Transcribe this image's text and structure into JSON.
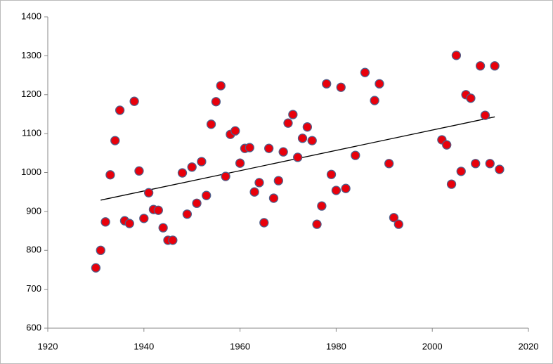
{
  "chart_data": {
    "type": "scatter",
    "x": [
      1930,
      1931,
      1932,
      1933,
      1934,
      1935,
      1936,
      1937,
      1938,
      1939,
      1940,
      1941,
      1942,
      1943,
      1944,
      1945,
      1946,
      1948,
      1949,
      1950,
      1951,
      1952,
      1953,
      1954,
      1955,
      1956,
      1957,
      1958,
      1959,
      1960,
      1961,
      1962,
      1963,
      1964,
      1965,
      1966,
      1967,
      1968,
      1969,
      1970,
      1971,
      1972,
      1973,
      1974,
      1975,
      1976,
      1977,
      1978,
      1979,
      1980,
      1981,
      1982,
      1984,
      1986,
      1988,
      1989,
      1991,
      1992,
      1993,
      2002,
      2003,
      2004,
      2005,
      2006,
      2007,
      2008,
      2009,
      2010,
      2011,
      2012,
      2013,
      2014
    ],
    "values": [
      755,
      800,
      873,
      994,
      1082,
      1160,
      876,
      869,
      1183,
      1004,
      882,
      948,
      905,
      903,
      858,
      826,
      826,
      999,
      893,
      1014,
      921,
      1028,
      941,
      1124,
      1182,
      1223,
      990,
      1098,
      1107,
      1024,
      1062,
      1064,
      950,
      974,
      871,
      1062,
      934,
      979,
      1053,
      1127,
      1149,
      1039,
      1088,
      1117,
      1082,
      867,
      914,
      1228,
      995,
      954,
      1219,
      959,
      1044,
      1257,
      1185,
      1228,
      1023,
      884,
      867,
      1084,
      1071,
      970,
      1301,
      1003,
      1200,
      1191,
      1023,
      1274,
      1147,
      1023,
      1274,
      1008
    ],
    "color": "#e8000b",
    "trendline": {
      "x": [
        1931,
        2013
      ],
      "y": [
        929,
        1143
      ],
      "color": "#000000"
    },
    "xlim": [
      1920,
      2020
    ],
    "xticks": [
      1920,
      1940,
      1960,
      1980,
      2000,
      2020
    ],
    "ylim": [
      600,
      1400
    ],
    "yticks": [
      600,
      700,
      800,
      900,
      1000,
      1100,
      1200,
      1300,
      1400
    ]
  }
}
